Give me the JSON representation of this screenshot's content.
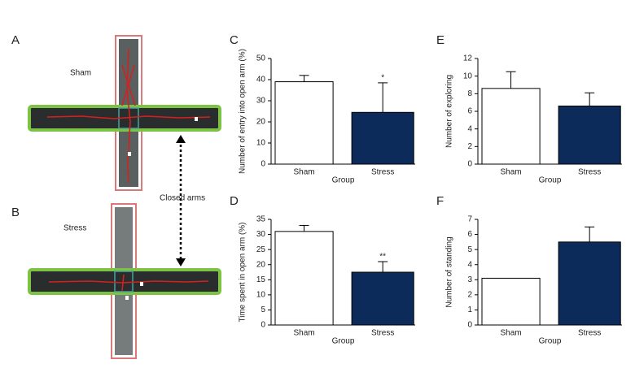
{
  "panels": {
    "a": {
      "label": "A",
      "group": "Sham"
    },
    "b": {
      "label": "B",
      "group": "Stress"
    },
    "closed_arms": "Closed arms"
  },
  "chart_data": [
    {
      "type": "bar",
      "label": "C",
      "ylabel": "Number of entry into open arm (%)",
      "xlabel": "Group",
      "categories": [
        "Sham",
        "Stress"
      ],
      "values": [
        39,
        24.5
      ],
      "errors": [
        3,
        14
      ],
      "annotations": [
        null,
        "*"
      ],
      "colors": [
        "#ffffff",
        "#0c2b5a"
      ],
      "ylim": [
        0,
        50
      ],
      "yticks": [
        0,
        10,
        20,
        30,
        40,
        50
      ]
    },
    {
      "type": "bar",
      "label": "E",
      "ylabel": "Number of exploring",
      "xlabel": "Group",
      "categories": [
        "Sham",
        "Stress"
      ],
      "values": [
        8.6,
        6.6
      ],
      "errors": [
        1.9,
        1.5
      ],
      "annotations": [
        null,
        null
      ],
      "colors": [
        "#ffffff",
        "#0c2b5a"
      ],
      "ylim": [
        0,
        12
      ],
      "yticks": [
        0,
        2,
        4,
        6,
        8,
        10,
        12
      ]
    },
    {
      "type": "bar",
      "label": "D",
      "ylabel": "Time spent in open arm (%)",
      "xlabel": "Group",
      "categories": [
        "Sham",
        "Stress"
      ],
      "values": [
        31,
        17.5
      ],
      "errors": [
        2,
        3.5
      ],
      "annotations": [
        null,
        "**"
      ],
      "colors": [
        "#ffffff",
        "#0c2b5a"
      ],
      "ylim": [
        0,
        35
      ],
      "yticks": [
        0,
        5,
        10,
        15,
        20,
        25,
        30,
        35
      ]
    },
    {
      "type": "bar",
      "label": "F",
      "ylabel": "Number of standing",
      "xlabel": "Group",
      "categories": [
        "Sham",
        "Stress"
      ],
      "values": [
        3.1,
        5.5
      ],
      "errors": [
        null,
        1
      ],
      "annotations": [
        null,
        null
      ],
      "colors": [
        "#ffffff",
        "#0c2b5a"
      ],
      "ylim": [
        0,
        7
      ],
      "yticks": [
        0,
        1,
        2,
        3,
        4,
        5,
        6,
        7
      ]
    }
  ]
}
